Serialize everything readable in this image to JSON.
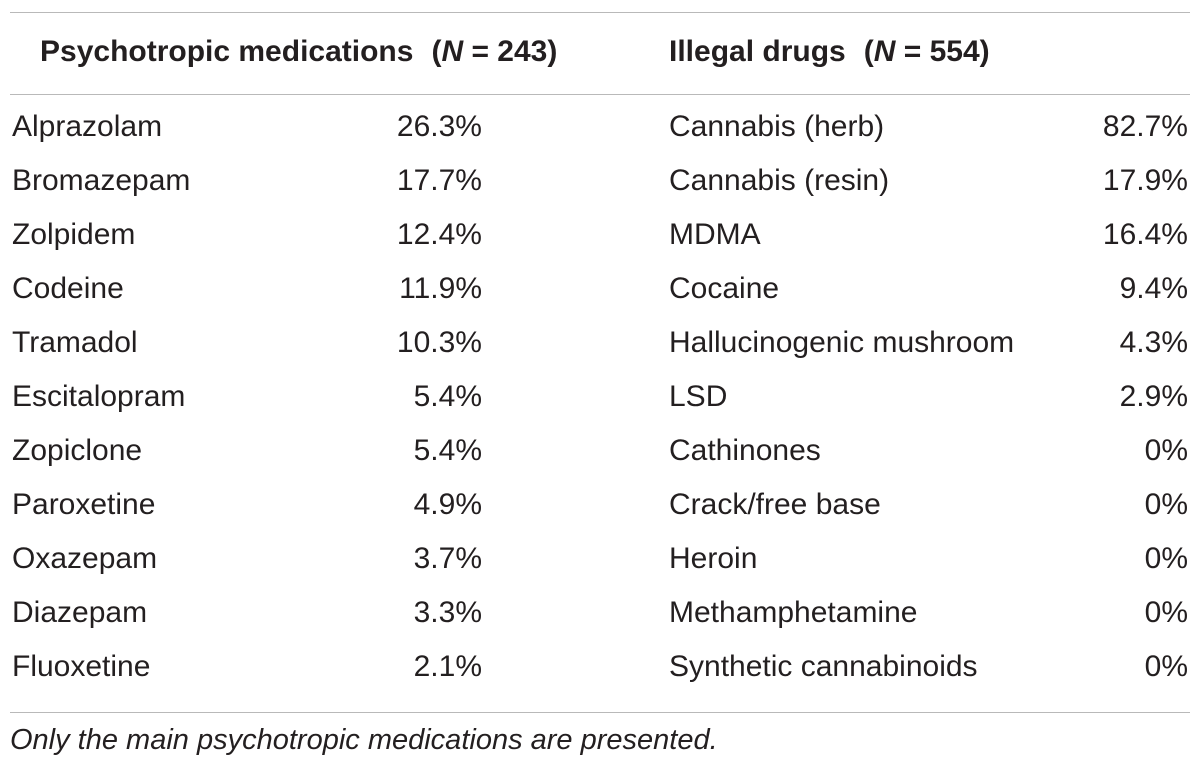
{
  "header": {
    "medications": {
      "label": "Psychotropic medications",
      "n_open": "(",
      "n_symbol": "N",
      "n_rest": " = 243)"
    },
    "drugs": {
      "label": "Illegal drugs",
      "n_open": "(",
      "n_symbol": "N",
      "n_rest": " = 554)"
    }
  },
  "rows": [
    {
      "medication": "Alprazolam",
      "med_pct": "26.3%",
      "drug": "Cannabis (herb)",
      "drug_pct": "82.7%"
    },
    {
      "medication": "Bromazepam",
      "med_pct": "17.7%",
      "drug": "Cannabis (resin)",
      "drug_pct": "17.9%"
    },
    {
      "medication": "Zolpidem",
      "med_pct": "12.4%",
      "drug": "MDMA",
      "drug_pct": "16.4%"
    },
    {
      "medication": "Codeine",
      "med_pct": "11.9%",
      "drug": "Cocaine",
      "drug_pct": "9.4%"
    },
    {
      "medication": "Tramadol",
      "med_pct": "10.3%",
      "drug": "Hallucinogenic mushroom",
      "drug_pct": "4.3%"
    },
    {
      "medication": "Escitalopram",
      "med_pct": "5.4%",
      "drug": "LSD",
      "drug_pct": "2.9%"
    },
    {
      "medication": "Zopiclone",
      "med_pct": "5.4%",
      "drug": "Cathinones",
      "drug_pct": "0%"
    },
    {
      "medication": "Paroxetine",
      "med_pct": "4.9%",
      "drug": "Crack/free base",
      "drug_pct": "0%"
    },
    {
      "medication": "Oxazepam",
      "med_pct": "3.7%",
      "drug": "Heroin",
      "drug_pct": "0%"
    },
    {
      "medication": "Diazepam",
      "med_pct": "3.3%",
      "drug": "Methamphetamine",
      "drug_pct": "0%"
    },
    {
      "medication": "Fluoxetine",
      "med_pct": "2.1%",
      "drug": "Synthetic cannabinoids",
      "drug_pct": "0%"
    }
  ],
  "footnote": "Only the main psychotropic medications are presented."
}
